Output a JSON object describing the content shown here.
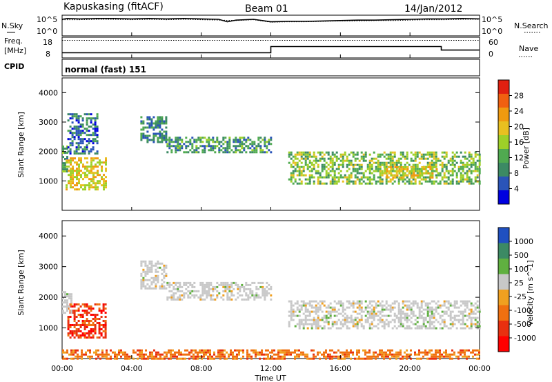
{
  "header": {
    "station": "Kapuskasing (fitACF)",
    "beam": "Beam 01",
    "date": "14/Jan/2012"
  },
  "status_panel": {
    "nsky_label": "N.Sky",
    "nsearch_label": "N.Search",
    "noise_ticks": [
      "10^5",
      "10^0"
    ],
    "freq_label_line1": "Freq.",
    "freq_label_line2": "[MHz]",
    "freq_ticks": [
      "18",
      "8"
    ],
    "nave_label": "Nave",
    "nave_ticks": [
      "60",
      "0"
    ],
    "cpid_label": "CPID",
    "cpid_value": "normal (fast) 151"
  },
  "x_axis": {
    "label": "Time UT",
    "ticks": [
      "00:00",
      "04:00",
      "08:00",
      "12:00",
      "16:00",
      "20:00",
      "00:00"
    ]
  },
  "power_panel": {
    "ylabel": "Slant Range [km]",
    "yticks": [
      "1000",
      "2000",
      "3000",
      "4000"
    ],
    "colorbar_label": "Power [dB]",
    "colorbar_ticks": [
      "28",
      "24",
      "20",
      "16",
      "12",
      "8",
      "4"
    ],
    "colors": [
      "#0000e0",
      "#2a54b8",
      "#3c8a64",
      "#50aa50",
      "#9ed028",
      "#e8c020",
      "#f09a10",
      "#f06010",
      "#e02010"
    ]
  },
  "velocity_panel": {
    "ylabel": "Slant Range [km]",
    "yticks": [
      "1000",
      "2000",
      "3000",
      "4000"
    ],
    "colorbar_label": "Velocity [m s^-1]",
    "colorbar_ticks": [
      "1000",
      "500",
      "100",
      "25",
      "-25",
      "-100",
      "-500",
      "-1000"
    ],
    "colors": [
      "#2050c0",
      "#3c8a64",
      "#60b040",
      "#c8c8c8",
      "#f0a020",
      "#f07010",
      "#e83010",
      "#ff0000"
    ]
  },
  "chart_data": [
    {
      "type": "line",
      "title": "N.Sky / N.Search",
      "x_units": "hours UT",
      "series": [
        {
          "name": "N.Sky",
          "x": [
            0,
            0.3,
            1,
            2,
            3,
            4,
            5,
            6,
            7,
            8,
            9,
            9.5,
            10,
            11,
            12,
            13,
            14,
            15,
            16,
            17,
            18,
            19,
            20,
            21,
            22,
            23,
            24
          ],
          "values": [
            4.0,
            4.2,
            4.1,
            4.2,
            4.2,
            4.1,
            4.2,
            4.1,
            4.2,
            4.1,
            4.0,
            3.4,
            3.8,
            4.0,
            3.4,
            3.5,
            3.5,
            3.6,
            3.7,
            3.8,
            3.8,
            3.9,
            4.0,
            4.1,
            4.1,
            4.2,
            4.1
          ]
        },
        {
          "name": "N.Search",
          "x": [
            0,
            1,
            2,
            3,
            4,
            5,
            6,
            7,
            8,
            9,
            10,
            11,
            12,
            13,
            14,
            15,
            16,
            17,
            18,
            19,
            20,
            21,
            22,
            23,
            24
          ],
          "values": [
            3.9,
            3.9,
            4.0,
            4.0,
            3.9,
            4.0,
            3.9,
            4.0,
            3.9,
            3.8,
            3.7,
            3.9,
            3.3,
            3.4,
            3.4,
            3.5,
            3.6,
            3.6,
            3.7,
            3.7,
            3.8,
            3.9,
            3.9,
            4.0,
            4.0
          ]
        }
      ]
    },
    {
      "type": "line",
      "title": "Freq. [MHz] / Nave",
      "x_units": "hours UT",
      "series": [
        {
          "name": "Freq.",
          "x": [
            0,
            12,
            12,
            21.8,
            21.8,
            24
          ],
          "values": [
            10.5,
            10.5,
            13.5,
            13.5,
            11.8,
            11.8
          ]
        },
        {
          "name": "Nave",
          "x": [
            0,
            24
          ],
          "values": [
            35,
            35
          ]
        }
      ]
    },
    {
      "type": "heatmap",
      "title": "Power [dB]",
      "x_units": "hours UT",
      "y_units": "km",
      "xlim": [
        0,
        24
      ],
      "ylim": [
        0,
        4500
      ],
      "regions": [
        {
          "x": [
            0,
            0.3
          ],
          "range": [
            1300,
            2200
          ],
          "value": 10
        },
        {
          "x": [
            0.2,
            2.5
          ],
          "range": [
            700,
            1800
          ],
          "value": 20
        },
        {
          "x": [
            0.3,
            2.0
          ],
          "range": [
            1900,
            3300
          ],
          "value": 6
        },
        {
          "x": [
            4.5,
            6.0
          ],
          "range": [
            2300,
            3200
          ],
          "value": 8
        },
        {
          "x": [
            6.0,
            12.0
          ],
          "range": [
            1950,
            2500
          ],
          "value": 10
        },
        {
          "x": [
            13.0,
            24.0
          ],
          "range": [
            900,
            2000
          ],
          "value": 14
        },
        {
          "x": [
            18.5,
            21.5
          ],
          "range": [
            1100,
            1500
          ],
          "value": 20
        }
      ]
    },
    {
      "type": "heatmap",
      "title": "Velocity [m s^-1]",
      "x_units": "hours UT",
      "y_units": "km",
      "xlim": [
        0,
        24
      ],
      "ylim": [
        0,
        4500
      ],
      "regions": [
        {
          "x": [
            0.3,
            2.5
          ],
          "range": [
            700,
            1800
          ],
          "value": -500
        },
        {
          "x": [
            0,
            0.5
          ],
          "range": [
            1500,
            2200
          ],
          "value": 25
        },
        {
          "x": [
            4.5,
            6.0
          ],
          "range": [
            2300,
            3200
          ],
          "value": 0
        },
        {
          "x": [
            6.0,
            12.0
          ],
          "range": [
            1950,
            2500
          ],
          "value": 0
        },
        {
          "x": [
            13.0,
            24.0
          ],
          "range": [
            1000,
            1900
          ],
          "value": 0
        },
        {
          "x": [
            0,
            24
          ],
          "range": [
            0,
            300
          ],
          "value": -100
        }
      ]
    }
  ]
}
